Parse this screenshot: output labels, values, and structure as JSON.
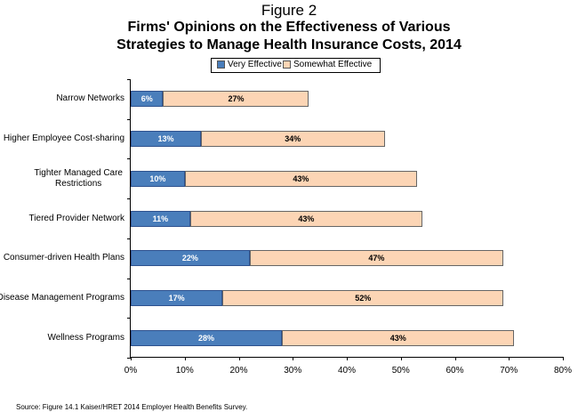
{
  "figure_label": "Figure 2",
  "title_line1": "Firms' Opinions on the Effectiveness of Various",
  "title_line2": "Strategies to Manage Health Insurance Costs, 2014",
  "source": "Source: Figure 14.1 Kaiser/HRET 2014 Employer Health Benefits Survey.",
  "colors": {
    "very": "#4a7ebb",
    "somewhat": "#fcd5b5"
  },
  "chart_data": {
    "type": "bar",
    "orientation": "horizontal",
    "stacked": true,
    "title": "Firms' Opinions on the Effectiveness of Various Strategies to Manage Health Insurance Costs, 2014",
    "categories": [
      "Narrow Networks",
      "Higher Employee Cost-sharing",
      "Tighter Managed Care Restrictions",
      "Tiered Provider Network",
      "Consumer-driven Health Plans",
      "Disease Management Programs",
      "Wellness Programs"
    ],
    "series": [
      {
        "name": "Very Effective",
        "values": [
          6,
          13,
          10,
          11,
          22,
          17,
          28
        ]
      },
      {
        "name": "Somewhat Effective",
        "values": [
          27,
          34,
          43,
          43,
          47,
          52,
          43
        ]
      }
    ],
    "data_labels": {
      "very": [
        "6%",
        "13%",
        "10%",
        "11%",
        "22%",
        "17%",
        "28%"
      ],
      "somewhat": [
        "27%",
        "34%",
        "43%",
        "43%",
        "47%",
        "52%",
        "43%"
      ]
    },
    "x_ticks": [
      "0%",
      "10%",
      "20%",
      "30%",
      "40%",
      "50%",
      "60%",
      "70%",
      "80%"
    ],
    "xlim": [
      0,
      80
    ],
    "legend_position": "top-center",
    "grid": false
  }
}
